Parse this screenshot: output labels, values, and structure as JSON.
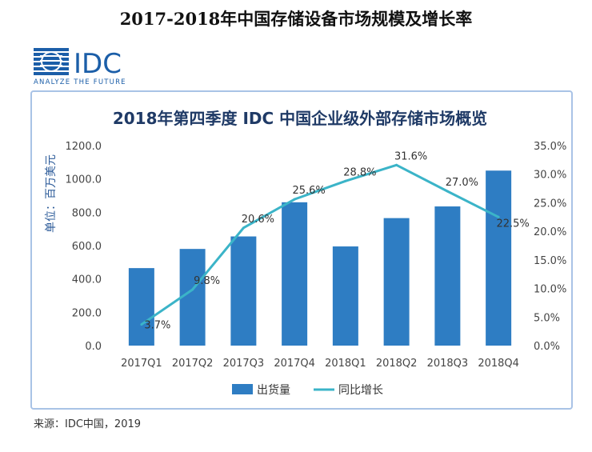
{
  "page": {
    "title": "2017-2018年中国存储设备市场规模及增长率",
    "source": "来源：IDC中国，2019"
  },
  "logo": {
    "text": "IDC",
    "tagline": "ANALYZE THE FUTURE",
    "color": "#1b5ea8"
  },
  "chart_data": {
    "type": "bar",
    "title": "2018年第四季度 IDC 中国企业级外部存储市场概览",
    "ylabel": "单位：百万美元",
    "y2label": "",
    "categories": [
      "2017Q1",
      "2017Q2",
      "2017Q3",
      "2017Q4",
      "2018Q1",
      "2018Q2",
      "2018Q3",
      "2018Q4"
    ],
    "ylim": [
      0,
      1200
    ],
    "y_ticks": [
      "0.0",
      "200.0",
      "400.0",
      "600.0",
      "800.0",
      "1000.0",
      "1200.0"
    ],
    "y2lim": [
      0,
      35
    ],
    "y2_ticks": [
      "0.0%",
      "5.0%",
      "10.0%",
      "15.0%",
      "20.0%",
      "25.0%",
      "30.0%",
      "35.0%"
    ],
    "series": [
      {
        "name": "出货量",
        "kind": "bar",
        "axis": "left",
        "color": "#2e7dc3",
        "values": [
          465,
          580,
          655,
          860,
          595,
          765,
          835,
          1050
        ]
      },
      {
        "name": "同比增长",
        "kind": "line",
        "axis": "right",
        "color": "#3bb4c8",
        "values": [
          3.7,
          9.8,
          20.6,
          25.6,
          28.8,
          31.6,
          27.0,
          22.5
        ],
        "labels": [
          "3.7%",
          "9.8%",
          "20.6%",
          "25.6%",
          "28.8%",
          "31.6%",
          "27.0%",
          "22.5%"
        ]
      }
    ],
    "legend": {
      "placement": "bottom"
    },
    "grid": false
  }
}
